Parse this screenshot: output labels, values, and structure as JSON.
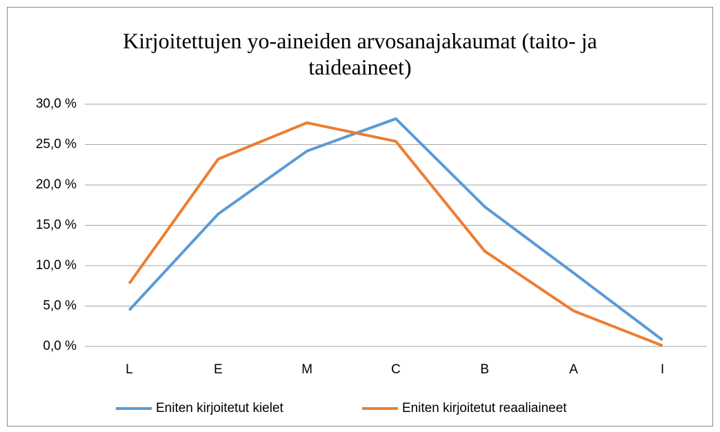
{
  "chart_data": {
    "type": "line",
    "title": "Kirjoitettujen yo-aineiden arvosanajakaumat (taito- ja taideaineet)",
    "categories": [
      "L",
      "E",
      "M",
      "C",
      "B",
      "A",
      "I"
    ],
    "series": [
      {
        "name": "Eniten kirjoitetut kielet",
        "color": "#5b9bd5",
        "values": [
          4.5,
          16.4,
          24.2,
          28.2,
          17.3,
          9.1,
          0.8
        ]
      },
      {
        "name": "Eniten kirjoitetut reaaliaineet",
        "color": "#ed7d31",
        "values": [
          7.8,
          23.2,
          27.7,
          25.4,
          11.8,
          4.4,
          0.1
        ]
      }
    ],
    "ylim": [
      0,
      30
    ],
    "yticks": [
      {
        "value": 0,
        "label": "0,0 %"
      },
      {
        "value": 5,
        "label": "5,0 %"
      },
      {
        "value": 10,
        "label": "10,0 %"
      },
      {
        "value": 15,
        "label": "15,0 %"
      },
      {
        "value": 20,
        "label": "20,0 %"
      },
      {
        "value": 25,
        "label": "25,0 %"
      },
      {
        "value": 30,
        "label": "30,0 %"
      }
    ],
    "grid": true,
    "legend": "bottom"
  }
}
